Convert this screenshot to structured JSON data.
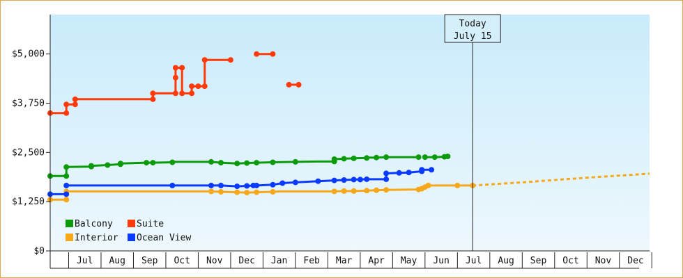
{
  "chart_data": {
    "type": "line",
    "title": "",
    "xlabel": "",
    "ylabel": "",
    "ylim": [
      0,
      6000
    ],
    "y_ticks": [
      {
        "value": 0,
        "label": "$0"
      },
      {
        "value": 1250,
        "label": "$1,250"
      },
      {
        "value": 2500,
        "label": "$2,500"
      },
      {
        "value": 3750,
        "label": "$3,750"
      },
      {
        "value": 5000,
        "label": "$5,000"
      }
    ],
    "x_unit": "months since Jun 1 of prior year",
    "xlim": [
      0.43,
      18.93
    ],
    "months": [
      "Jul",
      "Aug",
      "Sep",
      "Oct",
      "Nov",
      "Dec",
      "Jan",
      "Feb",
      "Mar",
      "Apr",
      "May",
      "Jun",
      "Jul",
      "Aug",
      "Sep",
      "Oct",
      "Nov",
      "Dec"
    ],
    "today": {
      "x": 13.47,
      "line1": "Today",
      "line2": "July 15"
    },
    "legend": {
      "placement": "bottom-left",
      "entries": [
        "Balcony",
        "Suite",
        "Interior",
        "Ocean View"
      ]
    },
    "series": [
      {
        "name": "Balcony",
        "color": "#0a9a0a",
        "segments": [
          [
            [
              0.43,
              1900
            ],
            [
              0.93,
              1900
            ],
            [
              0.93,
              2130
            ],
            [
              1.7,
              2140
            ],
            [
              1.7,
              2160
            ],
            [
              2.2,
              2180
            ],
            [
              2.6,
              2200
            ],
            [
              2.6,
              2220
            ],
            [
              3.4,
              2240
            ],
            [
              3.6,
              2240
            ],
            [
              4.2,
              2250
            ],
            [
              4.2,
              2260
            ],
            [
              5.4,
              2260
            ],
            [
              5.7,
              2240
            ],
            [
              6.2,
              2220
            ],
            [
              6.5,
              2230
            ],
            [
              6.8,
              2240
            ],
            [
              7.3,
              2250
            ],
            [
              8.0,
              2260
            ],
            [
              8.7,
              2270
            ],
            [
              9.2,
              2270
            ],
            [
              9.2,
              2330
            ],
            [
              9.5,
              2340
            ],
            [
              9.8,
              2350
            ],
            [
              10.2,
              2360
            ],
            [
              10.2,
              2370
            ],
            [
              10.5,
              2370
            ],
            [
              10.8,
              2380
            ],
            [
              11.8,
              2380
            ]
          ],
          [
            [
              12.0,
              2380
            ],
            [
              12.3,
              2380
            ],
            [
              12.6,
              2390
            ],
            [
              12.7,
              2400
            ]
          ]
        ],
        "markers": [
          [
            0.43,
            1900
          ],
          [
            0.93,
            1900
          ],
          [
            0.93,
            2130
          ],
          [
            1.7,
            2140
          ],
          [
            1.7,
            2160
          ],
          [
            2.2,
            2180
          ],
          [
            2.6,
            2200
          ],
          [
            2.6,
            2220
          ],
          [
            3.4,
            2240
          ],
          [
            3.6,
            2240
          ],
          [
            4.2,
            2250
          ],
          [
            5.4,
            2260
          ],
          [
            5.7,
            2240
          ],
          [
            6.2,
            2220
          ],
          [
            6.5,
            2230
          ],
          [
            6.8,
            2240
          ],
          [
            7.3,
            2250
          ],
          [
            8.0,
            2260
          ],
          [
            9.2,
            2270
          ],
          [
            9.2,
            2330
          ],
          [
            9.5,
            2340
          ],
          [
            9.8,
            2350
          ],
          [
            10.2,
            2360
          ],
          [
            10.5,
            2370
          ],
          [
            10.8,
            2380
          ],
          [
            11.8,
            2380
          ],
          [
            12.0,
            2380
          ],
          [
            12.3,
            2380
          ],
          [
            12.6,
            2390
          ],
          [
            12.7,
            2400
          ]
        ]
      },
      {
        "name": "Suite",
        "color": "#ff3a0a",
        "segments": [
          [
            [
              0.43,
              3500
            ],
            [
              0.93,
              3500
            ],
            [
              0.93,
              3720
            ],
            [
              1.2,
              3720
            ],
            [
              1.2,
              3850
            ],
            [
              3.6,
              3850
            ],
            [
              3.6,
              4000
            ],
            [
              4.3,
              4000
            ],
            [
              4.3,
              4650
            ],
            [
              4.5,
              4650
            ],
            [
              4.5,
              4000
            ],
            [
              4.8,
              4000
            ],
            [
              4.8,
              4180
            ],
            [
              5.2,
              4180
            ],
            [
              5.2,
              4850
            ],
            [
              6.0,
              4850
            ]
          ],
          [
            [
              6.8,
              5000
            ],
            [
              7.3,
              5000
            ]
          ],
          [
            [
              7.8,
              4220
            ],
            [
              8.1,
              4220
            ]
          ]
        ],
        "markers": [
          [
            0.43,
            3500
          ],
          [
            0.93,
            3500
          ],
          [
            0.93,
            3720
          ],
          [
            1.2,
            3720
          ],
          [
            1.2,
            3850
          ],
          [
            3.6,
            3850
          ],
          [
            3.6,
            4000
          ],
          [
            4.3,
            4000
          ],
          [
            4.3,
            4400
          ],
          [
            4.3,
            4650
          ],
          [
            4.5,
            4650
          ],
          [
            4.5,
            4000
          ],
          [
            4.8,
            4000
          ],
          [
            4.8,
            4180
          ],
          [
            5.0,
            4180
          ],
          [
            5.2,
            4180
          ],
          [
            5.2,
            4850
          ],
          [
            6.0,
            4850
          ],
          [
            6.8,
            5000
          ],
          [
            7.3,
            5000
          ],
          [
            7.8,
            4220
          ],
          [
            8.1,
            4220
          ]
        ]
      },
      {
        "name": "Interior",
        "color": "#f7a81a",
        "segments": [
          [
            [
              0.43,
              1300
            ],
            [
              0.93,
              1300
            ]
          ],
          [
            [
              0.93,
              1510
            ],
            [
              5.4,
              1510
            ],
            [
              5.7,
              1500
            ],
            [
              6.2,
              1490
            ],
            [
              6.5,
              1480
            ],
            [
              6.8,
              1490
            ],
            [
              7.3,
              1500
            ],
            [
              7.5,
              1510
            ],
            [
              9.2,
              1510
            ],
            [
              9.5,
              1520
            ],
            [
              9.8,
              1520
            ],
            [
              10.2,
              1530
            ],
            [
              10.5,
              1540
            ],
            [
              10.8,
              1550
            ],
            [
              11.8,
              1560
            ],
            [
              11.9,
              1580
            ],
            [
              12.0,
              1620
            ],
            [
              12.1,
              1660
            ],
            [
              12.3,
              1660
            ],
            [
              13.0,
              1660
            ],
            [
              13.47,
              1660
            ]
          ]
        ],
        "markers": [
          [
            0.43,
            1300
          ],
          [
            0.93,
            1300
          ],
          [
            0.93,
            1510
          ],
          [
            5.4,
            1510
          ],
          [
            5.7,
            1500
          ],
          [
            6.2,
            1490
          ],
          [
            6.5,
            1480
          ],
          [
            6.8,
            1490
          ],
          [
            7.3,
            1500
          ],
          [
            9.2,
            1510
          ],
          [
            9.5,
            1520
          ],
          [
            9.8,
            1520
          ],
          [
            10.2,
            1530
          ],
          [
            10.5,
            1540
          ],
          [
            10.8,
            1550
          ],
          [
            11.8,
            1560
          ],
          [
            11.9,
            1580
          ],
          [
            12.0,
            1620
          ],
          [
            12.1,
            1660
          ],
          [
            13.0,
            1660
          ],
          [
            13.47,
            1660
          ]
        ],
        "projection": [
          [
            13.47,
            1660
          ],
          [
            15.0,
            1740
          ],
          [
            17.0,
            1860
          ],
          [
            18.93,
            1960
          ]
        ]
      },
      {
        "name": "Ocean View",
        "color": "#0a3aff",
        "segments": [
          [
            [
              0.43,
              1440
            ],
            [
              0.93,
              1440
            ]
          ],
          [
            [
              0.93,
              1660
            ],
            [
              4.2,
              1660
            ],
            [
              5.4,
              1660
            ],
            [
              5.7,
              1660
            ],
            [
              6.2,
              1640
            ],
            [
              6.5,
              1650
            ],
            [
              6.8,
              1660
            ],
            [
              7.3,
              1680
            ],
            [
              7.6,
              1720
            ],
            [
              8.0,
              1740
            ],
            [
              8.7,
              1770
            ],
            [
              9.2,
              1790
            ],
            [
              9.5,
              1800
            ],
            [
              9.8,
              1810
            ],
            [
              10.2,
              1820
            ],
            [
              10.8,
              1820
            ],
            [
              10.8,
              1970
            ],
            [
              11.2,
              1980
            ],
            [
              11.5,
              1990
            ],
            [
              11.9,
              2020
            ],
            [
              11.9,
              2060
            ],
            [
              12.2,
              2060
            ]
          ]
        ],
        "markers": [
          [
            0.43,
            1440
          ],
          [
            0.93,
            1440
          ],
          [
            0.93,
            1660
          ],
          [
            4.2,
            1660
          ],
          [
            5.4,
            1660
          ],
          [
            5.7,
            1660
          ],
          [
            6.2,
            1640
          ],
          [
            6.5,
            1650
          ],
          [
            6.7,
            1660
          ],
          [
            6.8,
            1660
          ],
          [
            7.3,
            1680
          ],
          [
            7.6,
            1720
          ],
          [
            8.0,
            1740
          ],
          [
            8.7,
            1770
          ],
          [
            9.2,
            1790
          ],
          [
            9.5,
            1800
          ],
          [
            9.8,
            1810
          ],
          [
            10.0,
            1810
          ],
          [
            10.2,
            1820
          ],
          [
            10.8,
            1820
          ],
          [
            10.8,
            1970
          ],
          [
            11.2,
            1980
          ],
          [
            11.5,
            1990
          ],
          [
            11.9,
            2020
          ],
          [
            11.9,
            2060
          ],
          [
            12.2,
            2060
          ]
        ]
      }
    ]
  }
}
